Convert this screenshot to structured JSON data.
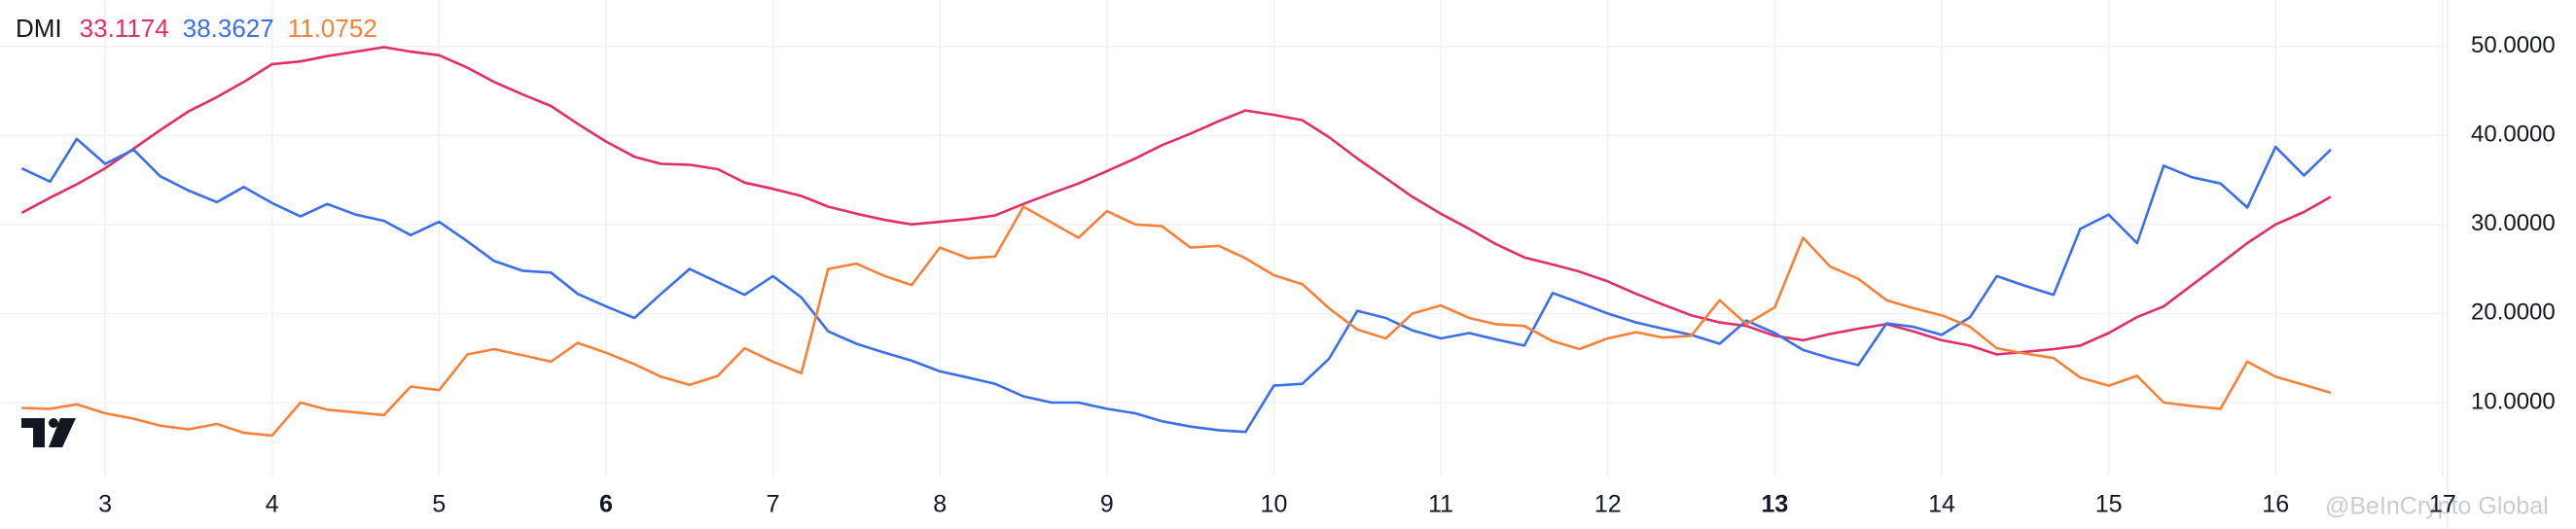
{
  "chart_data": {
    "type": "line",
    "title": "DMI",
    "watermark": "@BeInCrypto Global",
    "x": [
      2.5,
      2.67,
      2.83,
      3,
      3.17,
      3.33,
      3.5,
      3.67,
      3.83,
      4,
      4.17,
      4.33,
      4.5,
      4.67,
      4.83,
      5,
      5.17,
      5.33,
      5.5,
      5.67,
      5.83,
      6,
      6.17,
      6.33,
      6.5,
      6.67,
      6.83,
      7,
      7.17,
      7.33,
      7.5,
      7.67,
      7.83,
      8,
      8.17,
      8.33,
      8.5,
      8.67,
      8.83,
      9,
      9.17,
      9.33,
      9.5,
      9.67,
      9.83,
      10,
      10.17,
      10.33,
      10.5,
      10.67,
      10.83,
      11,
      11.17,
      11.33,
      11.5,
      11.67,
      11.83,
      12,
      12.17,
      12.33,
      12.5,
      12.67,
      12.83,
      13,
      13.17,
      13.33,
      13.5,
      13.67,
      13.83,
      14,
      14.17,
      14.33,
      14.5,
      14.67,
      14.83,
      15,
      15.17,
      15.33,
      15.5,
      15.67,
      15.83,
      16,
      16.17,
      16.33
    ],
    "series": [
      {
        "color": "#e22e68",
        "last_value": 33.1174,
        "values": [
          31.3,
          33.0,
          34.5,
          36.3,
          38.5,
          40.6,
          42.7,
          44.3,
          46.0,
          48.0,
          48.3,
          48.9,
          49.4,
          49.9,
          49.4,
          49.0,
          47.6,
          46.0,
          44.6,
          43.3,
          41.3,
          39.3,
          37.6,
          36.8,
          36.7,
          36.2,
          34.7,
          34.0,
          33.2,
          32.0,
          31.2,
          30.5,
          30.0,
          30.3,
          30.6,
          31.0,
          32.3,
          33.5,
          34.6,
          36.0,
          37.4,
          38.9,
          40.2,
          41.6,
          42.8,
          42.3,
          41.7,
          39.8,
          37.4,
          35.2,
          33.1,
          31.2,
          29.5,
          27.8,
          26.3,
          25.5,
          24.7,
          23.6,
          22.2,
          21.0,
          19.8,
          19.0,
          18.6,
          17.5,
          17.0,
          17.7,
          18.3,
          18.8,
          18.0,
          17.0,
          16.4,
          15.4,
          15.7,
          16.0,
          16.4,
          17.8,
          19.6,
          20.8,
          23.2,
          25.6,
          27.9,
          30.0,
          31.4,
          33.1
        ]
      },
      {
        "color": "#3c6ee8",
        "last_value": 38.3627,
        "values": [
          36.3,
          34.8,
          39.6,
          36.8,
          38.4,
          35.4,
          33.8,
          32.5,
          34.2,
          32.4,
          30.9,
          32.3,
          31.1,
          30.4,
          28.8,
          30.3,
          28.1,
          25.9,
          24.8,
          24.6,
          22.2,
          20.8,
          19.5,
          22.2,
          25.0,
          23.5,
          22.1,
          24.2,
          21.8,
          18.0,
          16.6,
          15.6,
          14.7,
          13.5,
          12.8,
          12.1,
          10.7,
          10.0,
          10.0,
          9.3,
          8.8,
          7.9,
          7.3,
          6.9,
          6.7,
          11.9,
          12.1,
          14.9,
          20.3,
          19.5,
          18.1,
          17.2,
          17.8,
          17.1,
          16.4,
          22.3,
          21.2,
          20.0,
          19.0,
          18.3,
          17.6,
          16.6,
          19.2,
          17.8,
          15.9,
          15.0,
          14.2,
          18.9,
          18.5,
          17.6,
          19.6,
          24.2,
          23.1,
          22.1,
          29.5,
          31.1,
          27.9,
          36.6,
          35.3,
          34.6,
          31.9,
          38.7,
          35.5,
          38.4
        ]
      },
      {
        "color": "#f5813a",
        "last_value": 11.0752,
        "values": [
          9.4,
          9.3,
          9.8,
          8.8,
          8.2,
          7.4,
          7.0,
          7.6,
          6.6,
          6.3,
          10.0,
          9.2,
          8.9,
          8.6,
          11.8,
          11.4,
          15.4,
          16.0,
          15.3,
          14.6,
          16.7,
          15.6,
          14.3,
          12.9,
          12.0,
          13.0,
          16.1,
          14.6,
          13.3,
          25.0,
          25.6,
          24.2,
          23.2,
          27.4,
          26.2,
          26.4,
          32.0,
          30.2,
          28.5,
          31.5,
          30.0,
          29.8,
          27.4,
          27.6,
          26.2,
          24.3,
          23.3,
          20.6,
          18.2,
          17.2,
          20.0,
          20.9,
          19.5,
          18.8,
          18.6,
          16.9,
          16.0,
          17.2,
          17.9,
          17.3,
          17.5,
          21.5,
          18.8,
          20.7,
          28.5,
          25.3,
          23.9,
          21.5,
          20.6,
          19.8,
          18.5,
          16.1,
          15.5,
          15.0,
          12.8,
          11.9,
          13.0,
          10.0,
          9.6,
          9.3,
          14.6,
          12.9,
          12.0,
          11.1
        ]
      }
    ],
    "xlim": [
      2.37,
      17.03
    ],
    "xticks": [
      3,
      4,
      5,
      6,
      7,
      8,
      9,
      10,
      11,
      12,
      13,
      14,
      15,
      16,
      17
    ],
    "xticks_bold": [
      6,
      13
    ],
    "ylim": [
      1.7,
      55.2
    ],
    "yticks": [
      {
        "value": 10,
        "label": "10.0000"
      },
      {
        "value": 20,
        "label": "20.0000"
      },
      {
        "value": 30,
        "label": "30.0000"
      },
      {
        "value": 40,
        "label": "40.0000"
      },
      {
        "value": 50,
        "label": "50.0000"
      }
    ],
    "y_axis_side": "right",
    "grid": true
  }
}
